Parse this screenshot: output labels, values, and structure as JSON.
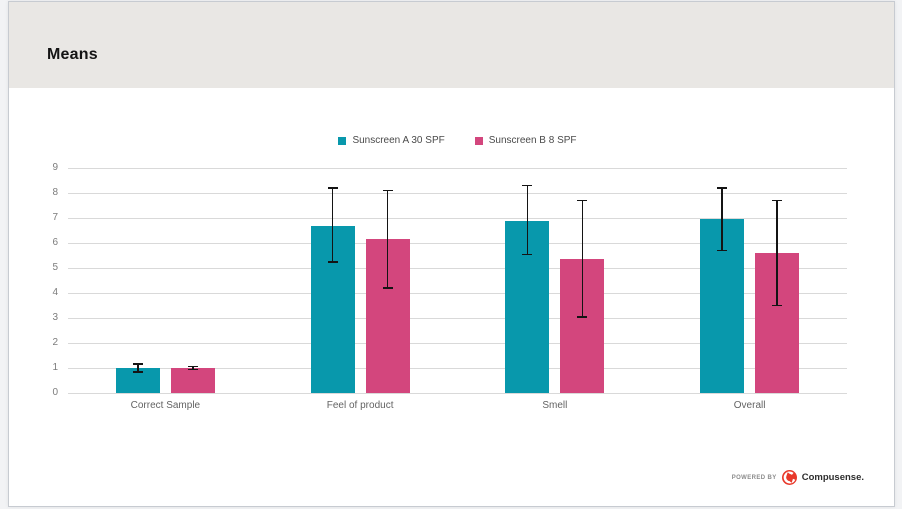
{
  "header": {
    "title": "Means"
  },
  "footer": {
    "powered_by": "POWERED BY",
    "brand": "Compusense."
  },
  "colors": {
    "series_a": "#0898ac",
    "series_b": "#d3467d",
    "header_bg": "#e9e7e4",
    "grid": "#d9d9d9",
    "error_bar": "#141414",
    "brand_red": "#e8392b",
    "card_border": "#c7cbd1"
  },
  "chart_data": {
    "type": "bar",
    "title": "Means",
    "categories": [
      "Correct Sample",
      "Feel of product",
      "Smell",
      "Overall"
    ],
    "series": [
      {
        "name": "Sunscreen A 30 SPF",
        "color_key": "series_a",
        "values": [
          1.0,
          6.7,
          6.9,
          6.95
        ],
        "error_low": [
          0.84,
          5.25,
          5.55,
          5.7
        ],
        "error_high": [
          1.16,
          8.2,
          8.3,
          8.2
        ]
      },
      {
        "name": "Sunscreen B 8 SPF",
        "color_key": "series_b",
        "values": [
          1.0,
          6.15,
          5.35,
          5.6
        ],
        "error_low": [
          0.95,
          4.2,
          3.05,
          3.5
        ],
        "error_high": [
          1.06,
          8.1,
          7.7,
          7.7
        ]
      }
    ],
    "y_ticks": [
      0,
      1,
      2,
      3,
      4,
      5,
      6,
      7,
      8,
      9
    ],
    "ylim": [
      0,
      9
    ],
    "grid": true,
    "legend_position": "top-center"
  }
}
